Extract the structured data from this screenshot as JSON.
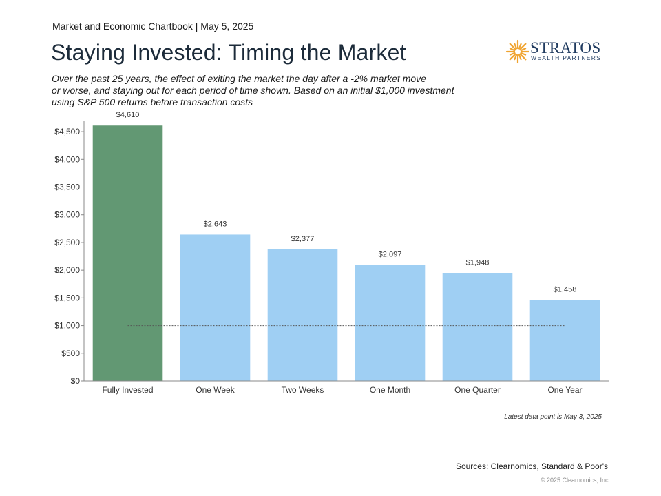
{
  "header": {
    "chartbook": "Market and Economic Chartbook | May 5, 2025"
  },
  "logo": {
    "name": "STRATOS",
    "subtitle": "WEALTH PARTNERS",
    "icon": "sunburst-icon",
    "colors": {
      "mark": "#f0a431",
      "text": "#1f3a5f"
    }
  },
  "title": "Staying Invested: Timing the Market",
  "subtitle_lines": [
    "Over the past 25 years, the effect of exiting the market the day after a -2% market move",
    "or worse, and staying out for each period of time shown. Based on an initial $1,000 investment",
    "using S&P 500 returns before transaction costs"
  ],
  "chart_data": {
    "type": "bar",
    "categories": [
      "Fully Invested",
      "One Week",
      "Two Weeks",
      "One Month",
      "One Quarter",
      "One Year"
    ],
    "values": [
      4610,
      2643,
      2377,
      2097,
      1948,
      1458
    ],
    "data_labels": [
      "$4,610",
      "$2,643",
      "$2,377",
      "$2,097",
      "$1,948",
      "$1,458"
    ],
    "y_ticks": [
      0,
      500,
      1000,
      1500,
      2000,
      2500,
      3000,
      3500,
      4000,
      4500
    ],
    "y_tick_labels": [
      "$0",
      "$500",
      "$1,000",
      "$1,500",
      "$2,000",
      "$2,500",
      "$3,000",
      "$3,500",
      "$4,000",
      "$4,500"
    ],
    "ylim": [
      0,
      4700
    ],
    "reference_line": 1000,
    "grid": false,
    "colors": {
      "highlight": "#629873",
      "bars": "#9fcff3",
      "reference": "#555555",
      "axis": "#888888"
    }
  },
  "footer": {
    "note": "Latest data point is May 3, 2025",
    "sources": "Sources: Clearnomics, Standard & Poor's",
    "copyright": "© 2025 Clearnomics, Inc."
  }
}
